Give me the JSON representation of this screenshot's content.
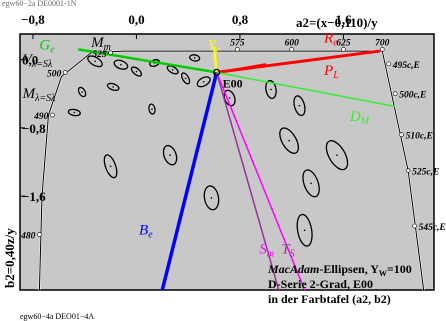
{
  "top_caption": "egw60−2a DE0001-1N",
  "bottom_caption": "egw60−4a DEO01−4A",
  "chart_data": {
    "type": "scatter",
    "title": "a2=(x−0,110)/y",
    "xlabel": "a2",
    "ylabel": "b2=0,40z/y",
    "xlim": [
      -0.9,
      2.3
    ],
    "ylim": [
      -2.7,
      0.3
    ],
    "x_ticks": [
      {
        "value": -0.8,
        "label": "−0,8"
      },
      {
        "value": 0.0,
        "label": "0,0"
      },
      {
        "value": 0.8,
        "label": "0,8"
      },
      {
        "value": 1.6,
        "label": "1,6"
      }
    ],
    "y_ticks": [
      {
        "value": 0.0,
        "label": "0,0"
      },
      {
        "value": -0.8,
        "label": "−0,8"
      },
      {
        "value": -1.6,
        "label": "−1,6"
      }
    ],
    "grid": false,
    "white_point": {
      "a": 0.62,
      "b": -0.15,
      "label": "E00"
    },
    "spectral_locus_labels": [
      {
        "label": "700",
        "a": 1.9,
        "b": 0.12
      },
      {
        "label": "625",
        "a": 1.6,
        "b": 0.12
      },
      {
        "label": "600",
        "a": 1.2,
        "b": 0.12
      },
      {
        "label": "575",
        "a": 0.78,
        "b": 0.12
      },
      {
        "label": "525",
        "a": -0.2,
        "b": 0.08
      },
      {
        "label": "500",
        "a": -0.55,
        "b": -0.15
      },
      {
        "label": "490",
        "a": -0.65,
        "b": -0.65
      },
      {
        "label": "480",
        "a": -0.75,
        "b": -2.05
      },
      {
        "label": "495c,E",
        "a": 1.95,
        "b": -0.05
      },
      {
        "label": "500c,E",
        "a": 2.0,
        "b": -0.4
      },
      {
        "label": "510c,E",
        "a": 2.05,
        "b": -0.88
      },
      {
        "label": "525c,E",
        "a": 2.1,
        "b": -1.3
      },
      {
        "label": "545c,E",
        "a": 2.15,
        "b": -1.95
      }
    ],
    "color_lines": [
      {
        "name": "Re",
        "color": "#ff0000"
      },
      {
        "name": "PL",
        "color": "#ff0000"
      },
      {
        "name": "Ge",
        "color": "#00cc00"
      },
      {
        "name": "DM",
        "color": "#33ee33"
      },
      {
        "name": "Ye",
        "color": "#ffff00"
      },
      {
        "name": "Be",
        "color": "#0000ff"
      },
      {
        "name": "Sm",
        "color": "#ff00ff"
      },
      {
        "name": "TS",
        "color": "#993399"
      }
    ],
    "annotations": [
      {
        "text": "Mm"
      },
      {
        "text": "Vλ=Sλ"
      },
      {
        "text": "Mλ=Sλ"
      }
    ],
    "ellipses": [
      {
        "a": -0.32,
        "b": -0.02
      },
      {
        "a": -0.12,
        "b": -0.06
      },
      {
        "a": 0.0,
        "b": -0.14
      },
      {
        "a": 0.14,
        "b": -0.04
      },
      {
        "a": 0.28,
        "b": -0.12
      },
      {
        "a": 0.38,
        "b": -0.22
      },
      {
        "a": 0.45,
        "b": 0.02
      },
      {
        "a": -0.18,
        "b": -0.32
      },
      {
        "a": -0.42,
        "b": -0.38
      },
      {
        "a": 0.52,
        "b": -0.26
      },
      {
        "a": -0.48,
        "b": -0.62
      },
      {
        "a": 0.12,
        "b": -0.58
      },
      {
        "a": 0.72,
        "b": -0.45
      },
      {
        "a": 1.04,
        "b": -0.35
      },
      {
        "a": 1.26,
        "b": -0.54
      },
      {
        "a": -0.2,
        "b": -1.25
      },
      {
        "a": 0.26,
        "b": -1.12
      },
      {
        "a": 1.18,
        "b": -0.95
      },
      {
        "a": 1.55,
        "b": -1.12
      },
      {
        "a": 1.35,
        "b": -1.45
      },
      {
        "a": 0.58,
        "b": -1.62
      },
      {
        "a": 1.3,
        "b": -2.0
      }
    ]
  },
  "legend_box": {
    "line1_italic": "MacAdam",
    "line1_rest": "-Ellipsen, Y",
    "line1_sub": "W",
    "line1_end": "=100",
    "line2": "D-Serie 2-Grad, E00",
    "line3": "in der Farbtafel (a2, b2)"
  },
  "colors": {
    "plot_background": "#c8c8c8",
    "frame": "#000000"
  }
}
